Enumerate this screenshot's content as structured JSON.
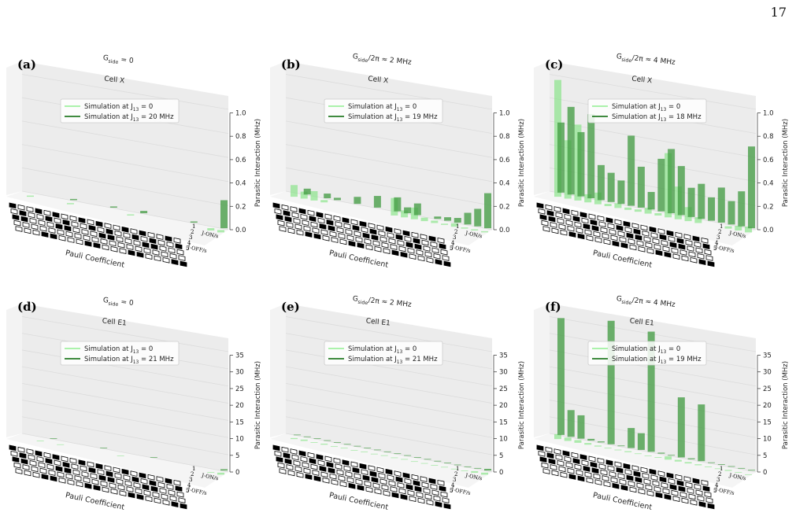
{
  "page_number": "17",
  "colors": {
    "light_series": "#90ee90",
    "dark_series": "#006400",
    "light_bar": "#7be27b",
    "dark_bar": "#3f9a3f",
    "pane": "#ececec",
    "grid": "#dcdcdc"
  },
  "axis_common": {
    "ylabel": "Parasitic Interaction (MHz)",
    "xlabel": "Pauli Coefficient",
    "depth_labels": [
      "J-ON/s",
      "J-OFF/s"
    ],
    "qubit_labels": [
      "1",
      "2",
      "3",
      "4",
      "5"
    ]
  },
  "chart_data": [
    {
      "panel": "(a)",
      "type": "bar",
      "gtext": "G_side = 0",
      "cell": "Cell X",
      "ylim": [
        0,
        1.0
      ],
      "yticks": [
        "0.0",
        "0.2",
        "0.4",
        "0.6",
        "0.8",
        "1.0"
      ],
      "legend": [
        "Simulation at J_13 = 0",
        "Simulation at J_13 = 20 MHz"
      ],
      "series": [
        {
          "name": "Simulation at J_13 = 0",
          "values": [
            0.01,
            0,
            0,
            0,
            0.01,
            0,
            0,
            0,
            0,
            0,
            0.01,
            0,
            0,
            0,
            0,
            0,
            0,
            0,
            0.02,
            0.02
          ]
        },
        {
          "name": "Simulation at J_13 = 20 MHz",
          "values": [
            0,
            0,
            0,
            0,
            0.01,
            0,
            0,
            0,
            0.01,
            0,
            0,
            0.02,
            0,
            0,
            0,
            0,
            0.01,
            0,
            0,
            0.24
          ]
        }
      ]
    },
    {
      "panel": "(b)",
      "type": "bar",
      "gtext": "G_side/2π ≈ 2 MHz",
      "cell": "Cell X",
      "ylim": [
        0,
        1.0
      ],
      "yticks": [
        "0.0",
        "0.2",
        "0.4",
        "0.6",
        "0.8",
        "1.0"
      ],
      "legend": [
        "Simulation at J_13 = 0",
        "Simulation at J_13 = 19 MHz"
      ],
      "series": [
        {
          "name": "Simulation at J_13 = 0",
          "values": [
            0.1,
            0.06,
            0.08,
            0.02,
            0,
            0,
            0,
            0,
            0,
            0,
            0.15,
            0.06,
            0.1,
            0.03,
            0.02,
            0.01,
            0.03,
            0.01,
            0.01,
            0.01
          ]
        },
        {
          "name": "Simulation at J_13 = 19 MHz",
          "values": [
            0,
            0.05,
            0,
            0.04,
            0.02,
            0,
            0.06,
            0,
            0.1,
            0,
            0.12,
            0.05,
            0.1,
            0,
            0.02,
            0.03,
            0.04,
            0.1,
            0.15,
            0.3
          ]
        }
      ]
    },
    {
      "panel": "(c)",
      "type": "bar",
      "gtext": "G_side/2π ≈ 4 MHz",
      "cell": "Cell X",
      "ylim": [
        0,
        1.0
      ],
      "yticks": [
        "0.0",
        "0.2",
        "0.4",
        "0.6",
        "0.8",
        "1.0"
      ],
      "legend": [
        "Simulation at J_13 = 0",
        "Simulation at J_13 = 18 MHz"
      ],
      "series": [
        {
          "name": "Simulation at J_13 = 0",
          "values": [
            1.0,
            0.5,
            0.65,
            0.07,
            0.1,
            0.02,
            0.04,
            0.02,
            0.02,
            0.05,
            0.02,
            0.55,
            0.28,
            0.12,
            0.05,
            0,
            0,
            0.02,
            0.04,
            0.05
          ]
        },
        {
          "name": "Simulation at J_13 = 18 MHz",
          "values": [
            0.6,
            0.75,
            0.55,
            0.72,
            0.3,
            0.25,
            0.2,
            0.6,
            0.35,
            0.15,
            0.45,
            0.55,
            0.42,
            0.25,
            0.3,
            0.2,
            0.3,
            0.2,
            0.3,
            0.7
          ]
        }
      ]
    },
    {
      "panel": "(d)",
      "type": "bar",
      "gtext": "G_side = 0",
      "cell": "Cell E1",
      "ylim": [
        0,
        35
      ],
      "yticks": [
        "0",
        "5",
        "10",
        "15",
        "20",
        "25",
        "30",
        "35"
      ],
      "legend": [
        "Simulation at J_13 = 0",
        "Simulation at J_13 = 21 MHz"
      ],
      "series": [
        {
          "name": "Simulation at J_13 = 0",
          "values": [
            0,
            0.1,
            0,
            0.1,
            0,
            0,
            0,
            0,
            0,
            0.1,
            0,
            0,
            0,
            0,
            0,
            0,
            0,
            0,
            0.2,
            0.6
          ]
        },
        {
          "name": "Simulation at J_13 = 21 MHz",
          "values": [
            0,
            0,
            0.1,
            0,
            0,
            0,
            0,
            0.1,
            0,
            0,
            0,
            0,
            0.1,
            0,
            0,
            0,
            0,
            0,
            0,
            0.4
          ]
        }
      ]
    },
    {
      "panel": "(e)",
      "type": "bar",
      "gtext": "G_side/2π ≈ 2 MHz",
      "cell": "Cell E1",
      "ylim": [
        0,
        35
      ],
      "yticks": [
        "0",
        "5",
        "10",
        "15",
        "20",
        "25",
        "30",
        "35"
      ],
      "legend": [
        "Simulation at J_13 = 0",
        "Simulation at J_13 = 21 MHz"
      ],
      "series": [
        {
          "name": "Simulation at J_13 = 0",
          "values": [
            0.3,
            0.4,
            0.2,
            0.3,
            0.1,
            0.2,
            0.1,
            0.2,
            0.1,
            0.2,
            0.1,
            0.2,
            0.1,
            0.1,
            0.1,
            0.1,
            0.1,
            0.1,
            0.5,
            0.6
          ]
        },
        {
          "name": "Simulation at J_13 = 21 MHz",
          "values": [
            0.1,
            0.1,
            0.1,
            0.1,
            0.1,
            0.1,
            0.1,
            0.1,
            0.1,
            0.1,
            0.1,
            0.1,
            0.1,
            0.1,
            0.1,
            0.1,
            0.1,
            0.1,
            0.2,
            0.5
          ]
        }
      ]
    },
    {
      "panel": "(f)",
      "type": "bar",
      "gtext": "G_side/2π ≈ 4 MHz",
      "cell": "Cell E1",
      "ylim": [
        0,
        35
      ],
      "yticks": [
        "0",
        "5",
        "10",
        "15",
        "20",
        "25",
        "30",
        "35"
      ],
      "legend": [
        "Simulation at J_13 = 0",
        "Simulation at J_13 = 19 MHz"
      ],
      "series": [
        {
          "name": "Simulation at J_13 = 0",
          "values": [
            1.5,
            1,
            0.8,
            0.5,
            0.3,
            0.2,
            0.2,
            0.3,
            0.2,
            0.1,
            0.2,
            1,
            0.5,
            0.4,
            0.3,
            0.2,
            0.2,
            0.3,
            0.2,
            0.1
          ]
        },
        {
          "name": "Simulation at J_13 = 19 MHz",
          "values": [
            35,
            8,
            7,
            0.5,
            0.3,
            37,
            0.2,
            6,
            5,
            36,
            0.3,
            0.2,
            18,
            0.3,
            17,
            0.2,
            0.2,
            0.2,
            0.2,
            0.2
          ]
        }
      ]
    }
  ]
}
